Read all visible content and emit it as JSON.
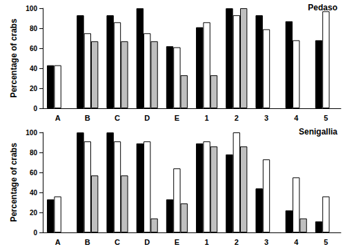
{
  "chart_data": [
    {
      "type": "bar",
      "title": "Pedaso",
      "ylabel": "Percentage of crabs",
      "categories": [
        "A",
        "B",
        "C",
        "D",
        "E",
        "1",
        "2",
        "3",
        "4",
        "5"
      ],
      "series": [
        {
          "color": "#000000",
          "values": [
            43,
            93,
            93,
            100,
            62,
            81,
            100,
            93,
            87,
            68
          ]
        },
        {
          "color": "#ffffff",
          "values": [
            43,
            75,
            86,
            75,
            61,
            86,
            93,
            79,
            68,
            97
          ]
        },
        {
          "color": "#bfbfbf",
          "values": [
            null,
            67,
            67,
            67,
            33,
            33,
            100,
            null,
            null,
            null
          ]
        }
      ],
      "ylim": [
        0,
        100
      ],
      "yticks": [
        0,
        20,
        40,
        60,
        80,
        100
      ],
      "grid": false
    },
    {
      "type": "bar",
      "title": "Senigallia",
      "ylabel": "Percentage of crabs",
      "categories": [
        "A",
        "B",
        "C",
        "D",
        "E",
        "1",
        "2",
        "3",
        "4",
        "5"
      ],
      "series": [
        {
          "color": "#000000",
          "values": [
            33,
            100,
            100,
            89,
            33,
            89,
            78,
            44,
            22,
            11
          ]
        },
        {
          "color": "#ffffff",
          "values": [
            36,
            91,
            91,
            91,
            64,
            91,
            100,
            73,
            55,
            36
          ]
        },
        {
          "color": "#bfbfbf",
          "values": [
            null,
            57,
            57,
            14,
            29,
            86,
            86,
            null,
            14,
            null
          ]
        }
      ],
      "ylim": [
        0,
        100
      ],
      "yticks": [
        0,
        20,
        40,
        60,
        80,
        100
      ],
      "grid": false
    }
  ]
}
